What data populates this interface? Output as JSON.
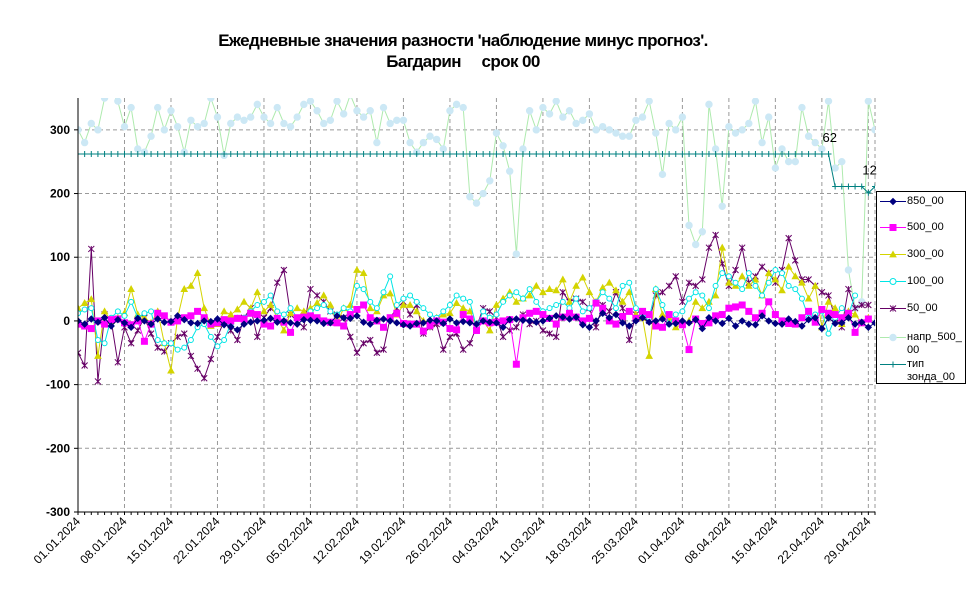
{
  "title_line1": "Ежедневные значения разности 'наблюдение минус прогноз'.",
  "title_line2": "Багдарин     срок 00",
  "chart_data": {
    "type": "line",
    "ylim": [
      -300,
      350
    ],
    "yticks": [
      -300,
      -200,
      -100,
      0,
      100,
      200,
      300
    ],
    "x_start": "2024-01-01",
    "x_end": "2024-04-30",
    "xtick_labels": [
      "01.01.2024",
      "08.01.2024",
      "15.01.2024",
      "22.01.2024",
      "29.01.2024",
      "05.02.2024",
      "12.02.2024",
      "19.02.2024",
      "26.02.2024",
      "04.03.2024",
      "11.03.2024",
      "18.03.2024",
      "25.03.2024",
      "01.04.2024",
      "08.04.2024",
      "15.04.2024",
      "22.04.2024",
      "29.04.2024"
    ],
    "grid": true,
    "legend_position": "right",
    "annotations": [
      {
        "text": "62",
        "x_index": 113,
        "y": 262
      },
      {
        "text": "12",
        "x_index": 119,
        "y": 211
      }
    ],
    "series": [
      {
        "name": "850_00",
        "color": "#000080",
        "marker": "diamond",
        "values": [
          0,
          -5,
          3,
          -2,
          5,
          -8,
          2,
          -3,
          -10,
          4,
          0,
          -5,
          3,
          -2,
          -1,
          8,
          2,
          -3,
          -4,
          0,
          -1,
          3,
          -6,
          -9,
          -14,
          -5,
          -2,
          0,
          1,
          4,
          -2,
          0,
          -3,
          -5,
          2,
          1,
          0,
          -4,
          -3,
          8,
          5,
          4,
          8,
          -2,
          -5,
          1,
          3,
          0,
          -3,
          -6,
          -8,
          -4,
          -3,
          1,
          0,
          -4,
          3,
          -3,
          -1,
          -3,
          -5,
          0,
          -2,
          -3,
          -10,
          2,
          3,
          1,
          0,
          -2,
          0,
          4,
          8,
          6,
          3,
          6,
          -6,
          -10,
          0,
          12,
          5,
          10,
          -3,
          -8,
          0,
          5,
          -2,
          0,
          3,
          -5,
          -4,
          0,
          -3,
          2,
          -12,
          5,
          0,
          -4,
          4,
          -8,
          0,
          -5,
          -6,
          8,
          0,
          -4,
          -5,
          3,
          -1,
          -8,
          2,
          5,
          -12,
          5,
          -4,
          -3,
          5,
          -5,
          -2,
          -10,
          -3,
          5
        ]
      },
      {
        "name": "500_00",
        "color": "#FF00FF",
        "marker": "square",
        "values": [
          -5,
          -8,
          -12,
          0,
          -5,
          2,
          3,
          -3,
          -6,
          0,
          -32,
          -5,
          12,
          8,
          -2,
          0,
          5,
          8,
          15,
          5,
          -5,
          -3,
          2,
          0,
          4,
          3,
          12,
          10,
          -5,
          -8,
          4,
          -2,
          -18,
          5,
          6,
          8,
          5,
          0,
          -2,
          -3,
          -8,
          10,
          18,
          25,
          5,
          0,
          -10,
          5,
          12,
          -4,
          -5,
          -5,
          -16,
          -7,
          0,
          -2,
          -12,
          -14,
          10,
          3,
          -15,
          0,
          -3,
          -2,
          0,
          2,
          -68,
          5,
          12,
          15,
          10,
          4,
          -5,
          6,
          12,
          6,
          0,
          4,
          28,
          20,
          0,
          -5,
          7,
          15,
          4,
          15,
          10,
          -8,
          -10,
          10,
          0,
          -6,
          -45,
          3,
          -4,
          -3,
          8,
          10,
          20,
          22,
          25,
          15,
          5,
          12,
          30,
          10,
          0,
          -4,
          -5,
          5,
          15,
          -2,
          18,
          12,
          10,
          5,
          12,
          -18,
          -3,
          3
        ]
      },
      {
        "name": "300_00",
        "color": "#D4D400",
        "marker": "triangle",
        "values": [
          20,
          28,
          34,
          -55,
          15,
          0,
          5,
          12,
          50,
          10,
          5,
          -3,
          15,
          -35,
          -78,
          5,
          50,
          55,
          75,
          20,
          -8,
          -5,
          15,
          10,
          18,
          30,
          20,
          45,
          15,
          25,
          5,
          -15,
          12,
          20,
          15,
          20,
          28,
          40,
          25,
          -3,
          20,
          25,
          80,
          75,
          20,
          15,
          40,
          43,
          10,
          25,
          25,
          15,
          0,
          -2,
          5,
          10,
          12,
          28,
          20,
          15,
          -8,
          0,
          -15,
          25,
          35,
          45,
          30,
          35,
          40,
          55,
          45,
          50,
          48,
          65,
          30,
          55,
          68,
          45,
          30,
          52,
          60,
          48,
          30,
          45,
          10,
          5,
          -55,
          50,
          10,
          5,
          -10,
          -5,
          0,
          30,
          20,
          30,
          40,
          115,
          60,
          55,
          70,
          55,
          65,
          40,
          75,
          65,
          48,
          85,
          70,
          60,
          35,
          55,
          -10,
          30,
          20,
          -5,
          15,
          10,
          -3,
          5
        ]
      },
      {
        "name": "100_00",
        "color": "#00E5E5",
        "marker": "circle",
        "values": [
          12,
          18,
          20,
          -30,
          -35,
          5,
          15,
          8,
          30,
          5,
          12,
          15,
          -30,
          -35,
          -35,
          -45,
          -42,
          -30,
          -10,
          -5,
          -25,
          -40,
          -30,
          -5,
          5,
          5,
          15,
          25,
          30,
          40,
          15,
          10,
          20,
          5,
          5,
          15,
          20,
          25,
          15,
          10,
          20,
          15,
          55,
          50,
          30,
          20,
          45,
          70,
          25,
          35,
          40,
          30,
          20,
          10,
          5,
          15,
          25,
          40,
          35,
          30,
          -10,
          15,
          5,
          10,
          30,
          40,
          45,
          35,
          50,
          30,
          15,
          20,
          25,
          30,
          20,
          35,
          15,
          20,
          30,
          45,
          35,
          20,
          55,
          60,
          20,
          10,
          5,
          50,
          25,
          -5,
          10,
          15,
          35,
          45,
          40,
          20,
          55,
          75,
          70,
          60,
          50,
          75,
          55,
          40,
          60,
          80,
          75,
          55,
          50,
          35,
          5,
          10,
          15,
          -20,
          5,
          20,
          10,
          40
        ]
      },
      {
        "name": "50_00",
        "color": "#660066",
        "marker": "star",
        "values": [
          -50,
          -70,
          113,
          -95,
          10,
          0,
          -65,
          -10,
          -35,
          -15,
          5,
          -20,
          -42,
          -48,
          -35,
          -25,
          -20,
          -55,
          -75,
          -90,
          -60,
          -25,
          0,
          -15,
          -30,
          5,
          20,
          -25,
          5,
          20,
          60,
          80,
          10,
          0,
          -10,
          50,
          40,
          30,
          15,
          10,
          5,
          -25,
          -50,
          -35,
          -30,
          -50,
          -45,
          5,
          20,
          30,
          10,
          25,
          -20,
          -10,
          -5,
          -45,
          -25,
          -20,
          -45,
          -35,
          -10,
          20,
          15,
          5,
          -25,
          -15,
          -10,
          10,
          -5,
          0,
          -15,
          -20,
          -25,
          45,
          30,
          35,
          30,
          20,
          -10,
          25,
          15,
          45,
          20,
          -30,
          10,
          5,
          0,
          40,
          45,
          55,
          70,
          30,
          60,
          55,
          65,
          115,
          135,
          90,
          55,
          80,
          115,
          60,
          70,
          85,
          75,
          60,
          80,
          130,
          95,
          65,
          65,
          55,
          45,
          40,
          5,
          -10,
          50,
          20,
          25,
          25
        ]
      },
      {
        "name": "напр_500_00",
        "color": "#CCE8F5",
        "line_color": "#AEEAAE",
        "marker": "circle",
        "values": [
          300,
          280,
          310,
          300,
          350,
          360,
          345,
          305,
          335,
          270,
          265,
          290,
          335,
          300,
          330,
          305,
          265,
          315,
          305,
          310,
          350,
          320,
          260,
          310,
          320,
          315,
          320,
          340,
          320,
          310,
          335,
          310,
          305,
          320,
          340,
          345,
          330,
          310,
          315,
          345,
          325,
          355,
          330,
          320,
          330,
          280,
          335,
          310,
          315,
          315,
          280,
          265,
          280,
          290,
          285,
          270,
          330,
          340,
          335,
          195,
          185,
          200,
          220,
          295,
          275,
          235,
          105,
          270,
          330,
          300,
          335,
          325,
          345,
          320,
          330,
          310,
          315,
          325,
          300,
          305,
          300,
          295,
          290,
          290,
          315,
          320,
          345,
          295,
          230,
          310,
          300,
          320,
          150,
          120,
          140,
          340,
          270,
          180,
          305,
          295,
          300,
          310,
          345,
          280,
          320,
          240,
          270,
          250,
          250,
          335,
          290,
          280,
          270,
          345,
          240,
          250,
          80,
          20,
          30,
          345,
          300
        ]
      },
      {
        "name": "тип зонда_00",
        "color": "#008080",
        "marker": "plus",
        "values": [
          262,
          262,
          262,
          262,
          262,
          262,
          262,
          262,
          262,
          262,
          262,
          262,
          262,
          262,
          262,
          262,
          262,
          262,
          262,
          262,
          262,
          262,
          262,
          262,
          262,
          262,
          262,
          262,
          262,
          262,
          262,
          262,
          262,
          262,
          262,
          262,
          262,
          262,
          262,
          262,
          262,
          262,
          262,
          262,
          262,
          262,
          262,
          262,
          262,
          262,
          262,
          262,
          262,
          262,
          262,
          262,
          262,
          262,
          262,
          262,
          262,
          262,
          262,
          262,
          262,
          262,
          262,
          262,
          262,
          262,
          262,
          262,
          262,
          262,
          262,
          262,
          262,
          262,
          262,
          262,
          262,
          262,
          262,
          262,
          262,
          262,
          262,
          262,
          262,
          262,
          262,
          262,
          262,
          262,
          262,
          262,
          262,
          262,
          262,
          262,
          262,
          262,
          262,
          262,
          262,
          262,
          262,
          262,
          262,
          262,
          262,
          262,
          262,
          262,
          211,
          211,
          211,
          211,
          211,
          201,
          211
        ]
      }
    ]
  },
  "legend_labels": [
    "850_00",
    "500_00",
    "300_00",
    "100_00",
    "50_00",
    "напр_500_00",
    "тип зонда_00"
  ]
}
